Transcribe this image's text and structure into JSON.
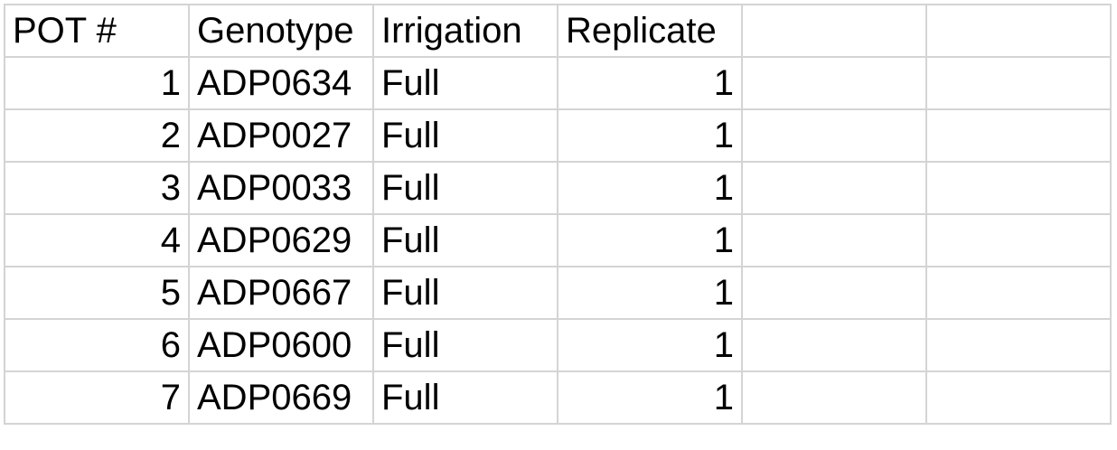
{
  "headers": [
    "POT #",
    "Genotype",
    "Irrigation",
    "Replicate",
    "",
    ""
  ],
  "rows": [
    {
      "pot": "1",
      "genotype": "ADP0634",
      "irrigation": "Full",
      "replicate": "1"
    },
    {
      "pot": "2",
      "genotype": "ADP0027",
      "irrigation": "Full",
      "replicate": "1"
    },
    {
      "pot": "3",
      "genotype": "ADP0033",
      "irrigation": "Full",
      "replicate": "1"
    },
    {
      "pot": "4",
      "genotype": "ADP0629",
      "irrigation": "Full",
      "replicate": "1"
    },
    {
      "pot": "5",
      "genotype": "ADP0667",
      "irrigation": "Full",
      "replicate": "1"
    },
    {
      "pot": "6",
      "genotype": "ADP0600",
      "irrigation": "Full",
      "replicate": "1"
    },
    {
      "pot": "7",
      "genotype": "ADP0669",
      "irrigation": "Full",
      "replicate": "1"
    }
  ]
}
